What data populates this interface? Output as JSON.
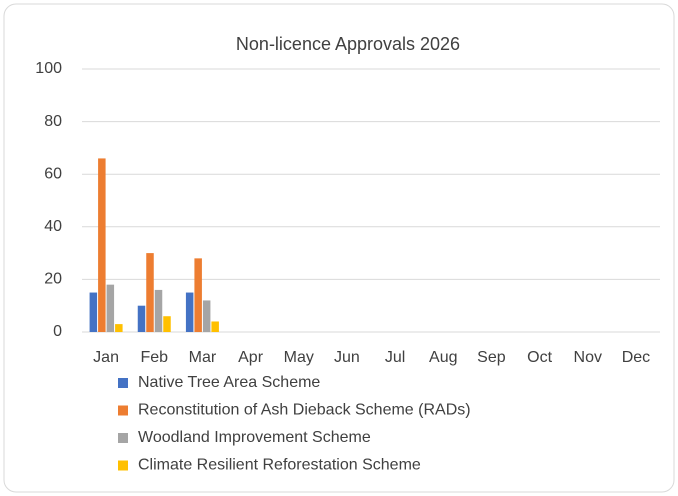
{
  "chart_data": {
    "type": "bar",
    "title": "Non-licence Approvals 2026",
    "categories": [
      "Jan",
      "Feb",
      "Mar",
      "Apr",
      "May",
      "Jun",
      "Jul",
      "Aug",
      "Sep",
      "Oct",
      "Nov",
      "Dec"
    ],
    "series": [
      {
        "name": "Native Tree Area Scheme",
        "color": "#4472c4",
        "values": [
          15,
          10,
          15,
          null,
          null,
          null,
          null,
          null,
          null,
          null,
          null,
          null
        ]
      },
      {
        "name": "Reconstitution of Ash Dieback Scheme (RADs)",
        "color": "#ed7d31",
        "values": [
          66,
          30,
          28,
          null,
          null,
          null,
          null,
          null,
          null,
          null,
          null,
          null
        ]
      },
      {
        "name": "Woodland Improvement Scheme",
        "color": "#a5a5a5",
        "values": [
          18,
          16,
          12,
          null,
          null,
          null,
          null,
          null,
          null,
          null,
          null,
          null
        ]
      },
      {
        "name": "Climate Resilient Reforestation Scheme",
        "color": "#ffc000",
        "values": [
          3,
          6,
          4,
          null,
          null,
          null,
          null,
          null,
          null,
          null,
          null,
          null
        ]
      }
    ],
    "ylim": [
      0,
      100
    ],
    "yticks": [
      0,
      20,
      40,
      60,
      80,
      100
    ],
    "grid": true,
    "legend": "bottom"
  }
}
